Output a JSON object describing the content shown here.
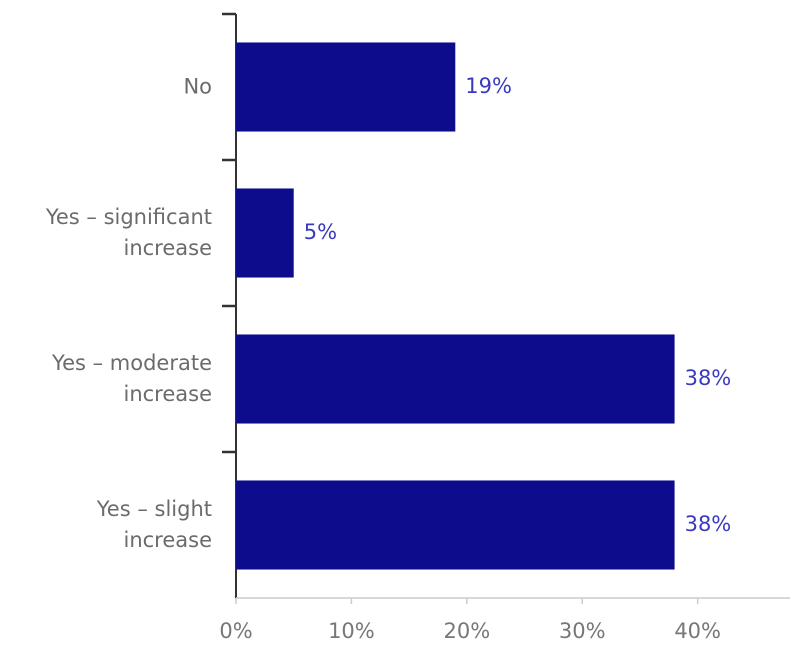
{
  "chart_data": {
    "type": "bar",
    "orientation": "horizontal",
    "categories": [
      "No",
      "Yes – significant increase",
      "Yes – moderate increase",
      "Yes – slight increase"
    ],
    "values": [
      19,
      5,
      38,
      38
    ],
    "value_labels": [
      "19%",
      "5%",
      "38%",
      "38%"
    ],
    "color": "#0c0c8c",
    "label_color": "#3a3ac0",
    "xlim": [
      0,
      48
    ],
    "xticks": [
      {
        "value": 0,
        "label": "0%"
      },
      {
        "value": 10,
        "label": "10%"
      },
      {
        "value": 20,
        "label": "20%"
      },
      {
        "value": 30,
        "label": "30%"
      },
      {
        "value": 40,
        "label": "40%"
      }
    ],
    "grid": false
  }
}
